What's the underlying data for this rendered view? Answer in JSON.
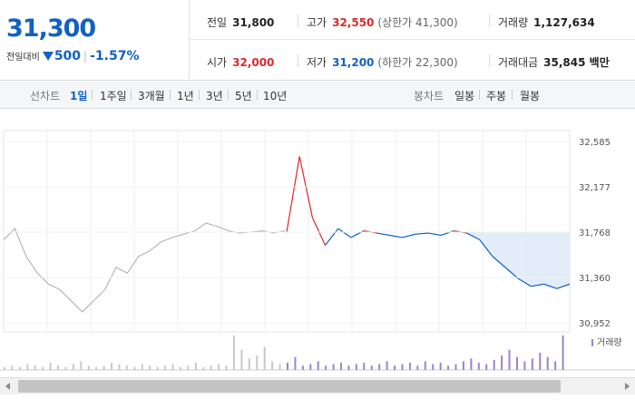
{
  "quote": {
    "price": "31,300",
    "change_label": "전일대비",
    "change_value": "500",
    "change_percent": "-1.57%",
    "prev_close_label": "전일",
    "prev_close": "31,800",
    "open_label": "시가",
    "open": "32,000",
    "high_label": "고가",
    "high": "32,550",
    "upper_limit": "(상한가 41,300)",
    "low_label": "저가",
    "low": "31,200",
    "lower_limit": "(하한가 22,300)",
    "volume_label": "거래량",
    "volume": "1,127,634",
    "amount_label": "거래대금",
    "amount": "35,845 백만"
  },
  "tabs": {
    "line_label": "선차트",
    "line_periods": [
      "1일",
      "1주일",
      "3개월",
      "1년",
      "3년",
      "5년",
      "10년"
    ],
    "candle_label": "봉차트",
    "candle_periods": [
      "일봉",
      "주봉",
      "월봉"
    ]
  },
  "colors": {
    "up": "#e0262b",
    "down": "#1261c4",
    "prev": "#aaaaaa",
    "volume": "#9a85c8"
  },
  "chart_data": {
    "type": "line",
    "y_ticks": [
      "32,585",
      "32,177",
      "31,768",
      "31,360",
      "30,952"
    ],
    "ylim": [
      30952,
      32585
    ],
    "reference_value": 31768,
    "legend": "거래량",
    "series": [
      {
        "values": [
          31700,
          31800,
          31550,
          31400,
          31300,
          31250,
          31150,
          31050,
          31150,
          31250,
          31450,
          31400,
          31550,
          31600,
          31680,
          31720,
          31750,
          31780,
          31850,
          31820,
          31780,
          31760,
          31770,
          31780,
          31760,
          31780
        ]
      },
      {
        "values": [
          31768,
          32450,
          31900,
          31650,
          31800,
          31720,
          31780,
          31760,
          31740,
          31720,
          31750,
          31760,
          31740,
          31780,
          31760,
          31700,
          31550,
          31450,
          31350,
          31280,
          31300,
          31260,
          31300
        ]
      }
    ],
    "volume": [
      2,
      3,
      2,
      4,
      3,
      2,
      5,
      3,
      2,
      4,
      6,
      3,
      2,
      3,
      5,
      4,
      3,
      2,
      4,
      3,
      2,
      3,
      4,
      2,
      3,
      5,
      2,
      3,
      4,
      3,
      24,
      14,
      8,
      10,
      16,
      6,
      4,
      5,
      9,
      3,
      4,
      6,
      3,
      4,
      5,
      3,
      4,
      5,
      3,
      4,
      6,
      3,
      4,
      5,
      3,
      6,
      4,
      5,
      3,
      4,
      6,
      8,
      5,
      4,
      7,
      10,
      14,
      9,
      6,
      8,
      12,
      9,
      6,
      24
    ]
  }
}
